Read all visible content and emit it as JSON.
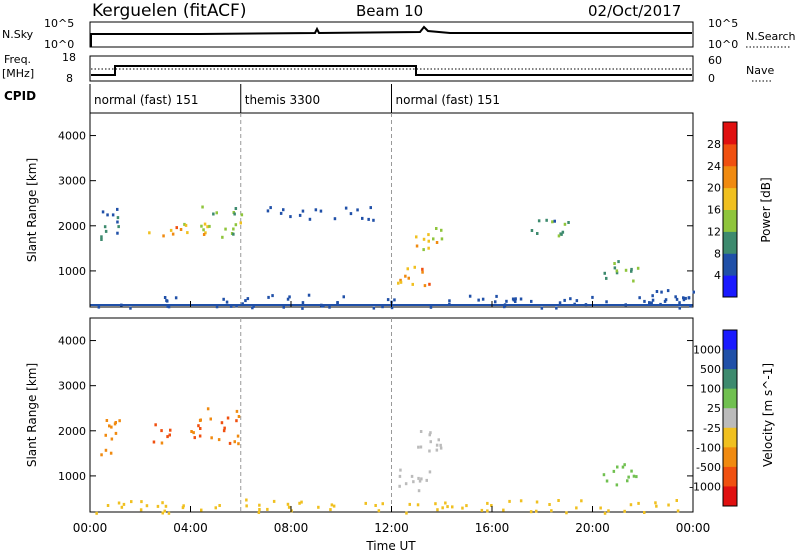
{
  "header": {
    "station": "Kerguelen (fitACF)",
    "beam": "Beam 10",
    "date": "02/Oct/2017"
  },
  "noise_panel": {
    "left_label": "N.Sky",
    "right_label": "N.Search",
    "left_ticks": [
      "10^5",
      "10^0"
    ],
    "right_ticks": [
      "10^5",
      "10^0"
    ]
  },
  "freq_panel": {
    "left_label_1": "Freq.",
    "left_label_2": "[MHz]",
    "right_label": "Nave",
    "left_ticks": [
      "18",
      "8"
    ],
    "right_ticks": [
      "60",
      "0"
    ]
  },
  "cpid": {
    "label": "CPID",
    "segments": [
      {
        "name": "normal (fast) 151",
        "start": 0,
        "end": 6
      },
      {
        "name": "themis 3300",
        "start": 6,
        "end": 12
      },
      {
        "name": "normal (fast) 151",
        "start": 12,
        "end": 24
      }
    ]
  },
  "colors": {
    "power": [
      "#1a1aff",
      "#2050a8",
      "#3d8a6e",
      "#8fc53c",
      "#f0c020",
      "#f08a10",
      "#f05010",
      "#e01010"
    ],
    "velocity": [
      "#1a1aff",
      "#2050a8",
      "#3d8a6e",
      "#70c050",
      "#bbbbbb",
      "#f0c020",
      "#f08a10",
      "#f05010",
      "#e01010"
    ]
  },
  "chart_data": [
    {
      "type": "heatmap",
      "title": "",
      "xlabel": "",
      "ylabel": "Slant Range [km]",
      "xlim": [
        0,
        24
      ],
      "ylim": [
        200,
        4500
      ],
      "yticks": [
        1000,
        2000,
        3000,
        4000
      ],
      "colorbar_label": "Power [dB]",
      "colorbar_ticks": [
        "4",
        "8",
        "12",
        "16",
        "20",
        "24",
        "28"
      ],
      "colorbar_range": [
        0,
        32
      ],
      "patches": [
        {
          "t0": 4.1,
          "t1": 6.0,
          "r0": 1700,
          "r1": 2550,
          "v": 14
        },
        {
          "t0": 2.3,
          "t1": 4.6,
          "r0": 1750,
          "r1": 2200,
          "v": 20
        },
        {
          "t0": 0.4,
          "t1": 1.2,
          "r0": 1500,
          "r1": 2400,
          "v": 8
        },
        {
          "t0": 0.2,
          "t1": 24.0,
          "r0": 200,
          "r1": 500,
          "v": 6
        },
        {
          "t0": 12.2,
          "t1": 13.6,
          "r0": 700,
          "r1": 1150,
          "v": 24
        },
        {
          "t0": 12.9,
          "t1": 14.0,
          "r0": 1450,
          "r1": 2050,
          "v": 16
        },
        {
          "t0": 7.0,
          "t1": 11.5,
          "r0": 2100,
          "r1": 2450,
          "v": 6
        },
        {
          "t0": 20.4,
          "t1": 21.8,
          "r0": 800,
          "r1": 1300,
          "v": 12
        },
        {
          "t0": 17.5,
          "t1": 19.0,
          "r0": 1800,
          "r1": 2200,
          "v": 10
        },
        {
          "t0": 22.0,
          "t1": 24.0,
          "r0": 250,
          "r1": 600,
          "v": 6
        }
      ]
    },
    {
      "type": "heatmap",
      "title": "",
      "xlabel": "Time UT",
      "ylabel": "Slant Range [km]",
      "xlim": [
        0,
        24
      ],
      "ylim": [
        200,
        4500
      ],
      "yticks": [
        1000,
        2000,
        3000,
        4000
      ],
      "xticks": [
        "00:00",
        "04:00",
        "08:00",
        "12:00",
        "16:00",
        "20:00",
        "00:00"
      ],
      "colorbar_label": "Velocity [m s^-1]",
      "colorbar_ticks": [
        "1000",
        "500",
        "100",
        "25",
        "-25",
        "-100",
        "-500",
        "-1000"
      ],
      "patches": [
        {
          "t0": 4.1,
          "t1": 6.0,
          "r0": 1700,
          "r1": 2550,
          "v": -300
        },
        {
          "t0": 2.3,
          "t1": 4.6,
          "r0": 1750,
          "r1": 2200,
          "v": -400
        },
        {
          "t0": 0.4,
          "t1": 1.2,
          "r0": 1500,
          "r1": 2400,
          "v": -200
        },
        {
          "t0": 0.2,
          "t1": 24.0,
          "r0": 200,
          "r1": 500,
          "v": -60
        },
        {
          "t0": 12.2,
          "t1": 13.6,
          "r0": 700,
          "r1": 1200,
          "v": 0
        },
        {
          "t0": 12.9,
          "t1": 14.0,
          "r0": 1450,
          "r1": 2050,
          "v": 0
        },
        {
          "t0": 20.4,
          "t1": 21.8,
          "r0": 800,
          "r1": 1300,
          "v": 10
        }
      ]
    }
  ]
}
